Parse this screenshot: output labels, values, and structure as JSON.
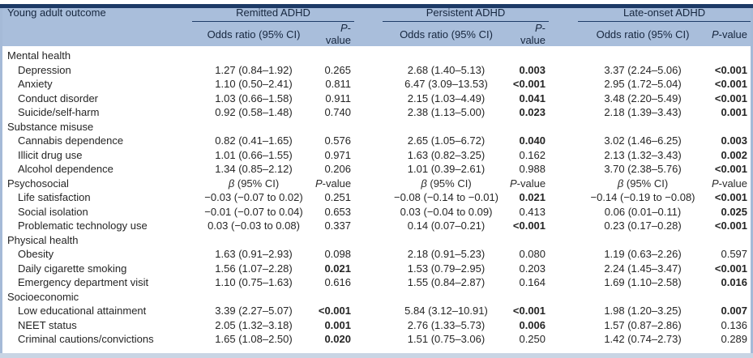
{
  "colors": {
    "top_rule": "#1d3a66",
    "header_band": "#a9bedb",
    "side_rule": "#a5bad7",
    "bottom_bar": "#c9d5e4",
    "group_underline": "#1e3c68"
  },
  "table": {
    "outcome_header": "Young adult outcome",
    "groups": [
      {
        "label": "Remitted ADHD"
      },
      {
        "label": "Persistent ADHD"
      },
      {
        "label": "Late-onset ADHD"
      }
    ],
    "subheader": {
      "or": "Odds ratio (95% CI)",
      "p_italic": "P",
      "p_rest": "-value"
    },
    "stat_header": {
      "beta_italic": "β",
      "beta_rest": " (95% CI)",
      "p_italic": "P",
      "p_rest": "-value"
    },
    "sections": [
      {
        "label": "Mental health",
        "stat_header": false,
        "rows": [
          {
            "label": "Depression",
            "cells": [
              {
                "est": "1.27 (0.84–1.92)",
                "p": "0.265",
                "bold": false
              },
              {
                "est": "2.68 (1.40–5.13)",
                "p": "0.003",
                "bold": true
              },
              {
                "est": "3.37 (2.24–5.06)",
                "p": "<0.001",
                "bold": true
              }
            ]
          },
          {
            "label": "Anxiety",
            "cells": [
              {
                "est": "1.10 (0.50–2.41)",
                "p": "0.811",
                "bold": false
              },
              {
                "est": "6.47 (3.09–13.53)",
                "p": "<0.001",
                "bold": true
              },
              {
                "est": "2.95 (1.72–5.04)",
                "p": "<0.001",
                "bold": true
              }
            ]
          },
          {
            "label": "Conduct disorder",
            "cells": [
              {
                "est": "1.03 (0.66–1.58)",
                "p": "0.911",
                "bold": false
              },
              {
                "est": "2.15 (1.03–4.49)",
                "p": "0.041",
                "bold": true
              },
              {
                "est": "3.48 (2.20–5.49)",
                "p": "<0.001",
                "bold": true
              }
            ]
          },
          {
            "label": "Suicide/self-harm",
            "cells": [
              {
                "est": "0.92 (0.58–1.48)",
                "p": "0.740",
                "bold": false
              },
              {
                "est": "2.38 (1.13–5.00)",
                "p": "0.023",
                "bold": true
              },
              {
                "est": "2.18 (1.39–3.43)",
                "p": "0.001",
                "bold": true
              }
            ]
          }
        ]
      },
      {
        "label": "Substance misuse",
        "stat_header": false,
        "rows": [
          {
            "label": "Cannabis dependence",
            "cells": [
              {
                "est": "0.82 (0.41–1.65)",
                "p": "0.576",
                "bold": false
              },
              {
                "est": "2.65 (1.05–6.72)",
                "p": "0.040",
                "bold": true
              },
              {
                "est": "3.02 (1.46–6.25)",
                "p": "0.003",
                "bold": true
              }
            ]
          },
          {
            "label": "Illicit drug use",
            "cells": [
              {
                "est": "1.01 (0.66–1.55)",
                "p": "0.971",
                "bold": false
              },
              {
                "est": "1.63 (0.82–3.25)",
                "p": "0.162",
                "bold": false
              },
              {
                "est": "2.13 (1.32–3.43)",
                "p": "0.002",
                "bold": true
              }
            ]
          },
          {
            "label": "Alcohol dependence",
            "cells": [
              {
                "est": "1.34 (0.85–2.12)",
                "p": "0.206",
                "bold": false
              },
              {
                "est": "1.01 (0.39–2.61)",
                "p": "0.988",
                "bold": false
              },
              {
                "est": "3.70 (2.38–5.76)",
                "p": "<0.001",
                "bold": true
              }
            ]
          }
        ]
      },
      {
        "label": "Psychosocial",
        "stat_header": true,
        "rows": [
          {
            "label": "Life satisfaction",
            "cells": [
              {
                "est": "−0.03 (−0.07 to 0.02)",
                "p": "0.251",
                "bold": false
              },
              {
                "est": "−0.08 (−0.14 to −0.01)",
                "p": "0.021",
                "bold": true
              },
              {
                "est": "−0.14 (−0.19 to −0.08)",
                "p": "<0.001",
                "bold": true
              }
            ]
          },
          {
            "label": "Social isolation",
            "cells": [
              {
                "est": "−0.01 (−0.07 to 0.04)",
                "p": "0.653",
                "bold": false
              },
              {
                "est": "0.03 (−0.04 to 0.09)",
                "p": "0.413",
                "bold": false
              },
              {
                "est": "0.06 (0.01–0.11)",
                "p": "0.025",
                "bold": true
              }
            ]
          },
          {
            "label": "Problematic technology use",
            "cells": [
              {
                "est": "0.03 (−0.03 to 0.08)",
                "p": "0.337",
                "bold": false
              },
              {
                "est": "0.14 (0.07–0.21)",
                "p": "<0.001",
                "bold": true
              },
              {
                "est": "0.23 (0.17–0.28)",
                "p": "<0.001",
                "bold": true
              }
            ]
          }
        ]
      },
      {
        "label": "Physical health",
        "stat_header": false,
        "rows": [
          {
            "label": "Obesity",
            "cells": [
              {
                "est": "1.63 (0.91–2.93)",
                "p": "0.098",
                "bold": false
              },
              {
                "est": "2.18 (0.91–5.23)",
                "p": "0.080",
                "bold": false
              },
              {
                "est": "1.19 (0.63–2.26)",
                "p": "0.597",
                "bold": false
              }
            ]
          },
          {
            "label": "Daily cigarette smoking",
            "cells": [
              {
                "est": "1.56 (1.07–2.28)",
                "p": "0.021",
                "bold": true
              },
              {
                "est": "1.53 (0.79–2.95)",
                "p": "0.203",
                "bold": false
              },
              {
                "est": "2.24 (1.45–3.47)",
                "p": "<0.001",
                "bold": true
              }
            ]
          },
          {
            "label": "Emergency department visit",
            "cells": [
              {
                "est": "1.10 (0.75–1.63)",
                "p": "0.616",
                "bold": false
              },
              {
                "est": "1.55 (0.84–2.87)",
                "p": "0.164",
                "bold": false
              },
              {
                "est": "1.69 (1.10–2.58)",
                "p": "0.016",
                "bold": true
              }
            ]
          }
        ]
      },
      {
        "label": "Socioeconomic",
        "stat_header": false,
        "rows": [
          {
            "label": "Low educational attainment",
            "cells": [
              {
                "est": "3.39 (2.27–5.07)",
                "p": "<0.001",
                "bold": true
              },
              {
                "est": "5.84 (3.12–10.91)",
                "p": "<0.001",
                "bold": true
              },
              {
                "est": "1.98 (1.20–3.25)",
                "p": "0.007",
                "bold": true
              }
            ]
          },
          {
            "label": "NEET status",
            "cells": [
              {
                "est": "2.05 (1.32–3.18)",
                "p": "0.001",
                "bold": true
              },
              {
                "est": "2.76 (1.33–5.73)",
                "p": "0.006",
                "bold": true
              },
              {
                "est": "1.57 (0.87–2.86)",
                "p": "0.136",
                "bold": false
              }
            ]
          },
          {
            "label": "Criminal cautions/convictions",
            "cells": [
              {
                "est": "1.65 (1.08–2.50)",
                "p": "0.020",
                "bold": true
              },
              {
                "est": "1.51 (0.75–3.06)",
                "p": "0.250",
                "bold": false
              },
              {
                "est": "1.42 (0.74–2.73)",
                "p": "0.289",
                "bold": false
              }
            ]
          }
        ]
      }
    ]
  }
}
